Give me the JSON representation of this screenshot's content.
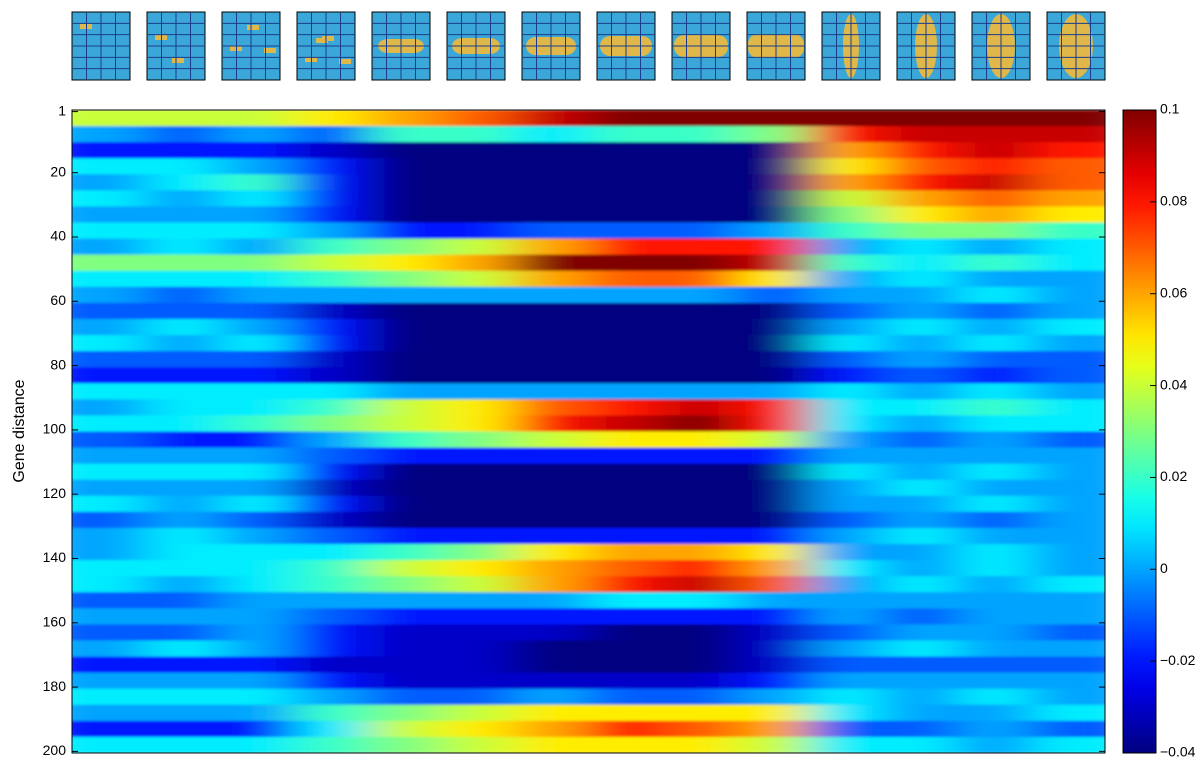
{
  "chart_data": {
    "type": "heatmap",
    "y_label": "Gene distance",
    "colormap": "jet",
    "ylim": [
      0.5,
      200.5
    ],
    "yticks": [
      1,
      20,
      40,
      60,
      80,
      100,
      120,
      140,
      160,
      180,
      200
    ],
    "clim": [
      -0.04,
      0.1
    ],
    "cticks": [
      {
        "value": -0.04,
        "label": "−0.04"
      },
      {
        "value": -0.02,
        "label": "−0.02"
      },
      0,
      0.02,
      0.04,
      0.06,
      0.08,
      0.1
    ],
    "y": [
      1,
      6,
      11,
      16,
      21,
      26,
      31,
      36,
      41,
      46,
      51,
      56,
      61,
      66,
      71,
      76,
      81,
      86,
      91,
      96,
      101,
      106,
      111,
      116,
      121,
      126,
      131,
      136,
      141,
      146,
      151,
      156,
      161,
      166,
      171,
      176,
      181,
      186,
      191,
      196
    ],
    "z": [
      [
        0.04,
        0.04,
        0.04,
        0.05,
        0.06,
        0.07,
        0.09,
        0.1,
        0.1,
        0.1,
        0.1,
        0.1,
        0.1,
        0.1
      ],
      [
        0,
        -0.01,
        0,
        -0.01,
        0.02,
        0.02,
        0.01,
        0.02,
        0.02,
        0.03,
        0.08,
        0.09,
        0.09,
        0.09
      ],
      [
        -0.02,
        -0.02,
        -0.02,
        -0.03,
        -0.04,
        -0.04,
        -0.04,
        -0.04,
        -0.04,
        -0.04,
        0.06,
        0.08,
        0.09,
        0.08
      ],
      [
        0.01,
        0.01,
        0,
        -0.02,
        -0.04,
        -0.04,
        -0.04,
        -0.04,
        -0.04,
        -0.04,
        0.05,
        0.07,
        0.08,
        0.07
      ],
      [
        0,
        0.01,
        0.02,
        -0.02,
        -0.04,
        -0.04,
        -0.04,
        -0.04,
        -0.04,
        -0.04,
        0.06,
        0.08,
        0.09,
        0.07
      ],
      [
        0.01,
        0,
        0.01,
        -0.02,
        -0.04,
        -0.04,
        -0.04,
        -0.04,
        -0.04,
        -0.04,
        0.04,
        0.06,
        0.07,
        0.06
      ],
      [
        0,
        0,
        0,
        -0.02,
        -0.04,
        -0.04,
        -0.04,
        -0.04,
        -0.04,
        -0.04,
        0.03,
        0.05,
        0.06,
        0.05
      ],
      [
        0.01,
        0.01,
        0.01,
        0,
        -0.02,
        -0.02,
        -0.01,
        -0.01,
        -0.01,
        0,
        0.02,
        0.03,
        0.03,
        0.02
      ],
      [
        0,
        0.01,
        0,
        0.02,
        0.03,
        0.04,
        0.06,
        0.08,
        0.08,
        0.08,
        0,
        0.01,
        0,
        0.01
      ],
      [
        0.03,
        0.03,
        0.03,
        0.04,
        0.05,
        0.06,
        0.1,
        0.1,
        0.1,
        0.09,
        0.02,
        0.01,
        0.02,
        0.01
      ],
      [
        0.01,
        0.01,
        0.01,
        0.02,
        0.03,
        0.04,
        0.06,
        0.07,
        0.07,
        0.05,
        0,
        0.01,
        0,
        0
      ],
      [
        0,
        -0.01,
        0,
        0,
        0,
        0,
        0,
        0,
        0,
        -0.01,
        0,
        0,
        0.01,
        0
      ],
      [
        -0.01,
        -0.01,
        -0.01,
        -0.03,
        -0.04,
        -0.04,
        -0.04,
        -0.04,
        -0.04,
        -0.04,
        -0.01,
        0,
        -0.01,
        0
      ],
      [
        0,
        0.01,
        0,
        -0.02,
        -0.04,
        -0.04,
        -0.04,
        -0.04,
        -0.04,
        -0.04,
        0,
        0.01,
        0,
        0.01
      ],
      [
        0.01,
        0,
        0.01,
        -0.02,
        -0.04,
        -0.04,
        -0.04,
        -0.04,
        -0.04,
        -0.04,
        0.01,
        0,
        0.01,
        0
      ],
      [
        -0.01,
        -0.01,
        -0.01,
        -0.03,
        -0.04,
        -0.04,
        -0.04,
        -0.04,
        -0.04,
        -0.04,
        -0.01,
        0,
        -0.01,
        -0.01
      ],
      [
        -0.02,
        -0.02,
        -0.02,
        -0.03,
        -0.04,
        -0.04,
        -0.04,
        -0.04,
        -0.04,
        -0.04,
        -0.02,
        -0.01,
        -0.02,
        -0.01
      ],
      [
        0.01,
        0.01,
        0.01,
        0.01,
        0,
        0,
        0,
        0,
        0,
        0,
        0.01,
        0,
        0.01,
        0
      ],
      [
        0,
        0.01,
        0.01,
        0.02,
        0.04,
        0.05,
        0.07,
        0.08,
        0.09,
        0.08,
        0.01,
        0.01,
        0.02,
        0.01
      ],
      [
        0.01,
        0.01,
        0.02,
        0.03,
        0.04,
        0.05,
        0.08,
        0.09,
        0.1,
        0.08,
        0.01,
        0,
        0.01,
        0.01
      ],
      [
        -0.01,
        -0.02,
        -0.02,
        0,
        0.02,
        0.03,
        0.04,
        0.05,
        0.05,
        0.04,
        0,
        -0.01,
        0,
        -0.01
      ],
      [
        0,
        0,
        0,
        -0.01,
        -0.02,
        -0.02,
        -0.02,
        -0.02,
        -0.02,
        -0.02,
        0,
        0,
        0,
        0
      ],
      [
        0.01,
        0.01,
        0.01,
        -0.02,
        -0.04,
        -0.04,
        -0.04,
        -0.04,
        -0.04,
        -0.04,
        0.01,
        0,
        0.01,
        0
      ],
      [
        0,
        0,
        0,
        -0.03,
        -0.04,
        -0.04,
        -0.04,
        -0.04,
        -0.04,
        -0.04,
        0,
        0.01,
        0,
        0
      ],
      [
        0.01,
        0,
        0.01,
        -0.02,
        -0.04,
        -0.04,
        -0.04,
        -0.04,
        -0.04,
        -0.04,
        0,
        0,
        0.01,
        0
      ],
      [
        -0.01,
        0,
        -0.01,
        -0.03,
        -0.04,
        -0.04,
        -0.04,
        -0.04,
        -0.04,
        -0.04,
        -0.01,
        0,
        -0.01,
        0
      ],
      [
        0,
        0.01,
        0,
        -0.01,
        -0.02,
        -0.02,
        -0.02,
        -0.02,
        -0.02,
        -0.02,
        0,
        0.01,
        0,
        0
      ],
      [
        0,
        0.01,
        0.01,
        0.01,
        0.02,
        0.03,
        0.05,
        0.06,
        0.06,
        0.05,
        0,
        0,
        0.01,
        0
      ],
      [
        0.01,
        0.01,
        0.01,
        0.02,
        0.04,
        0.05,
        0.06,
        0.07,
        0.08,
        0.06,
        0.01,
        0,
        0.01,
        0
      ],
      [
        0.01,
        0,
        0.01,
        0.02,
        0.03,
        0.04,
        0.06,
        0.08,
        0.09,
        0.07,
        0,
        0.01,
        0,
        0.01
      ],
      [
        -0.01,
        -0.01,
        0,
        0,
        0,
        0,
        0,
        0.01,
        0.01,
        0,
        0,
        0,
        0,
        0
      ],
      [
        0,
        0,
        0,
        -0.01,
        -0.02,
        -0.02,
        -0.02,
        -0.02,
        -0.02,
        -0.02,
        0,
        -0.01,
        0,
        0
      ],
      [
        -0.01,
        -0.01,
        0,
        -0.02,
        -0.03,
        -0.03,
        -0.03,
        -0.04,
        -0.04,
        -0.03,
        -0.01,
        0,
        0,
        -0.01
      ],
      [
        0,
        0.01,
        0,
        -0.02,
        -0.03,
        -0.03,
        -0.04,
        -0.04,
        -0.04,
        -0.03,
        0,
        0.01,
        0,
        0
      ],
      [
        -0.02,
        -0.02,
        -0.02,
        -0.03,
        -0.03,
        -0.03,
        -0.04,
        -0.04,
        -0.04,
        -0.03,
        -0.01,
        -0.01,
        -0.01,
        -0.01
      ],
      [
        0,
        0,
        0,
        -0.02,
        -0.03,
        -0.03,
        -0.03,
        -0.03,
        -0.03,
        -0.02,
        0,
        0,
        0,
        0
      ],
      [
        0.01,
        0.01,
        0.01,
        0,
        -0.01,
        -0.01,
        0,
        -0.01,
        -0.01,
        0,
        0.01,
        0,
        0.01,
        0
      ],
      [
        0,
        0,
        0,
        0.02,
        0.03,
        0.04,
        0.05,
        0.05,
        0.05,
        0.05,
        0.01,
        0,
        0,
        0.01
      ],
      [
        -0.02,
        -0.02,
        -0.02,
        0.01,
        0.04,
        0.05,
        0.06,
        0.08,
        0.07,
        0.06,
        -0.01,
        -0.01,
        0,
        -0.01
      ],
      [
        0.01,
        0.01,
        0.01,
        0.02,
        0.03,
        0.04,
        0.05,
        0.05,
        0.05,
        0.04,
        0.01,
        0.01,
        0,
        0.01
      ]
    ]
  }
}
